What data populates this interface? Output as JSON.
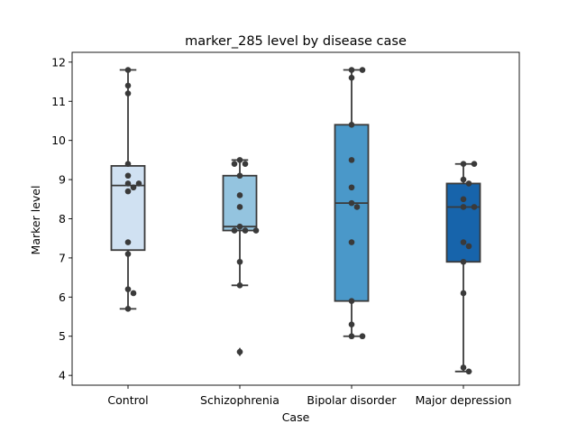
{
  "chart_data": {
    "type": "box",
    "title": "marker_285 level by disease case",
    "xlabel": "Case",
    "ylabel": "Marker level",
    "ylim": [
      3.75,
      12.25
    ],
    "yticks": [
      4,
      5,
      6,
      7,
      8,
      9,
      10,
      11,
      12
    ],
    "grid": false,
    "legend": "none",
    "categories": [
      "Control",
      "Schizophrenia",
      "Bipolar disorder",
      "Major depression"
    ],
    "colors": {
      "Control": "#d0e1f2",
      "Schizophrenia": "#94c4df",
      "Bipolar disorder": "#4a98c9",
      "Major depression": "#1764ab",
      "edge": "#3a3a3a",
      "point": "#3a3a3a"
    },
    "boxes": [
      {
        "category": "Control",
        "whisker_low": 5.7,
        "q1": 7.2,
        "median": 8.85,
        "q3": 9.35,
        "whisker_high": 11.8,
        "outliers": []
      },
      {
        "category": "Schizophrenia",
        "whisker_low": 6.3,
        "q1": 7.7,
        "median": 7.8,
        "q3": 9.1,
        "whisker_high": 9.5,
        "outliers": [
          4.6
        ]
      },
      {
        "category": "Bipolar disorder",
        "whisker_low": 5.0,
        "q1": 5.9,
        "median": 8.4,
        "q3": 10.4,
        "whisker_high": 11.8,
        "outliers": []
      },
      {
        "category": "Major depression",
        "whisker_low": 4.1,
        "q1": 6.9,
        "median": 8.3,
        "q3": 8.9,
        "whisker_high": 9.4,
        "outliers": []
      }
    ],
    "points": [
      {
        "category": "Control",
        "values": [
          11.8,
          11.4,
          11.2,
          9.4,
          9.1,
          8.9,
          8.9,
          8.8,
          8.7,
          7.4,
          7.1,
          6.2,
          6.1,
          5.7
        ]
      },
      {
        "category": "Schizophrenia",
        "values": [
          9.5,
          9.4,
          9.4,
          9.1,
          8.6,
          8.3,
          7.8,
          7.7,
          7.7,
          7.7,
          6.9,
          6.3,
          4.6
        ]
      },
      {
        "category": "Bipolar disorder",
        "values": [
          11.8,
          11.8,
          11.6,
          10.4,
          9.5,
          8.8,
          8.4,
          8.3,
          7.4,
          5.9,
          5.3,
          5.0,
          5.0
        ]
      },
      {
        "category": "Major depression",
        "values": [
          9.4,
          9.4,
          9.0,
          8.9,
          8.5,
          8.3,
          8.3,
          7.4,
          7.3,
          6.9,
          6.1,
          4.2,
          4.1
        ]
      }
    ]
  }
}
